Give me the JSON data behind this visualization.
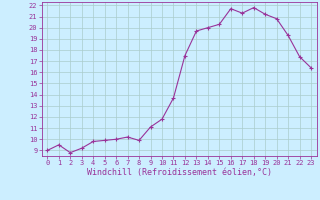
{
  "x": [
    0,
    1,
    2,
    3,
    4,
    5,
    6,
    7,
    8,
    9,
    10,
    11,
    12,
    13,
    14,
    15,
    16,
    17,
    18,
    19,
    20,
    21,
    22,
    23
  ],
  "y": [
    9.0,
    9.5,
    8.8,
    9.2,
    9.8,
    9.9,
    10.0,
    10.2,
    9.9,
    11.1,
    11.8,
    13.7,
    17.5,
    19.7,
    20.0,
    20.3,
    21.7,
    21.3,
    21.8,
    21.2,
    20.8,
    19.3,
    17.4,
    16.4
  ],
  "line_color": "#993399",
  "marker_color": "#993399",
  "bg_color": "#cceeff",
  "grid_color": "#aacccc",
  "axis_label_color": "#993399",
  "xlabel": "Windchill (Refroidissement éolien,°C)",
  "ylim": [
    8.5,
    22.3
  ],
  "xlim": [
    -0.5,
    23.5
  ],
  "yticks": [
    9,
    10,
    11,
    12,
    13,
    14,
    15,
    16,
    17,
    18,
    19,
    20,
    21,
    22
  ],
  "xticks": [
    0,
    1,
    2,
    3,
    4,
    5,
    6,
    7,
    8,
    9,
    10,
    11,
    12,
    13,
    14,
    15,
    16,
    17,
    18,
    19,
    20,
    21,
    22,
    23
  ],
  "tick_label_color": "#993399",
  "tick_label_size": 5.0,
  "xlabel_size": 6.0
}
